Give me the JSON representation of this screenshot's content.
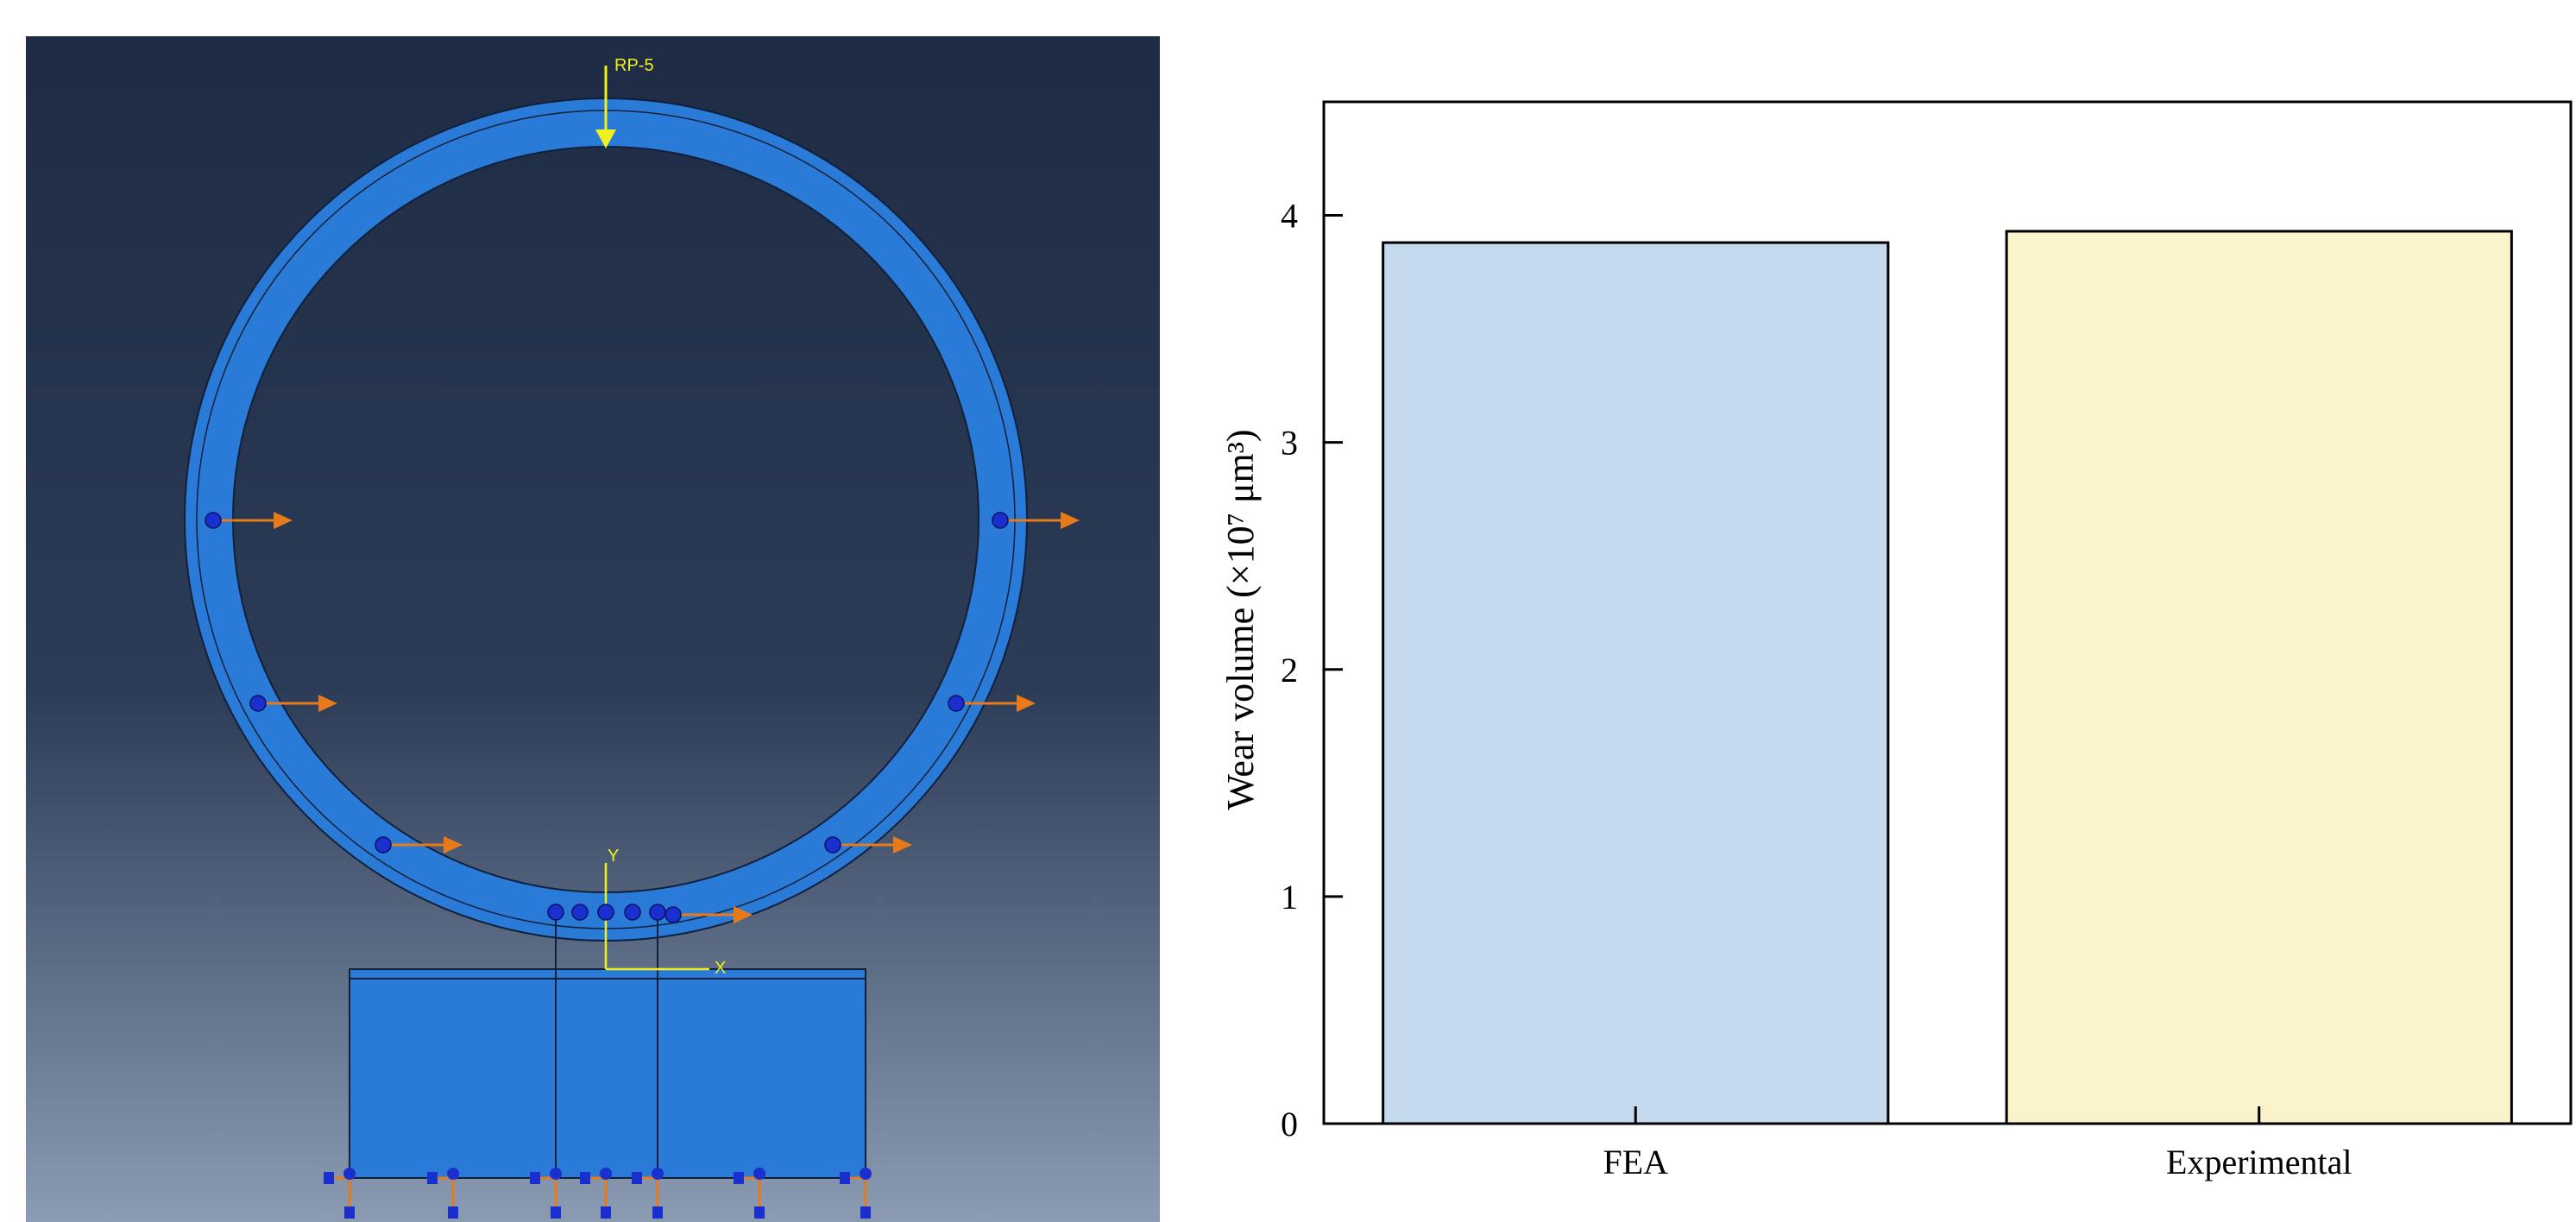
{
  "fea_model": {
    "labels": [
      "RP-5",
      "Y",
      "X"
    ]
  },
  "chart_data": {
    "type": "bar",
    "ylabel": "Wear volume (×10⁷ μm³)",
    "categories": [
      "FEA",
      "Experimental"
    ],
    "values": [
      3.88,
      3.93
    ],
    "colors": [
      "#c5d9ec",
      "#faf2c8"
    ],
    "ylim": [
      0,
      4.5
    ],
    "yticks": [
      0,
      1,
      2,
      3,
      4
    ],
    "grid": false
  }
}
